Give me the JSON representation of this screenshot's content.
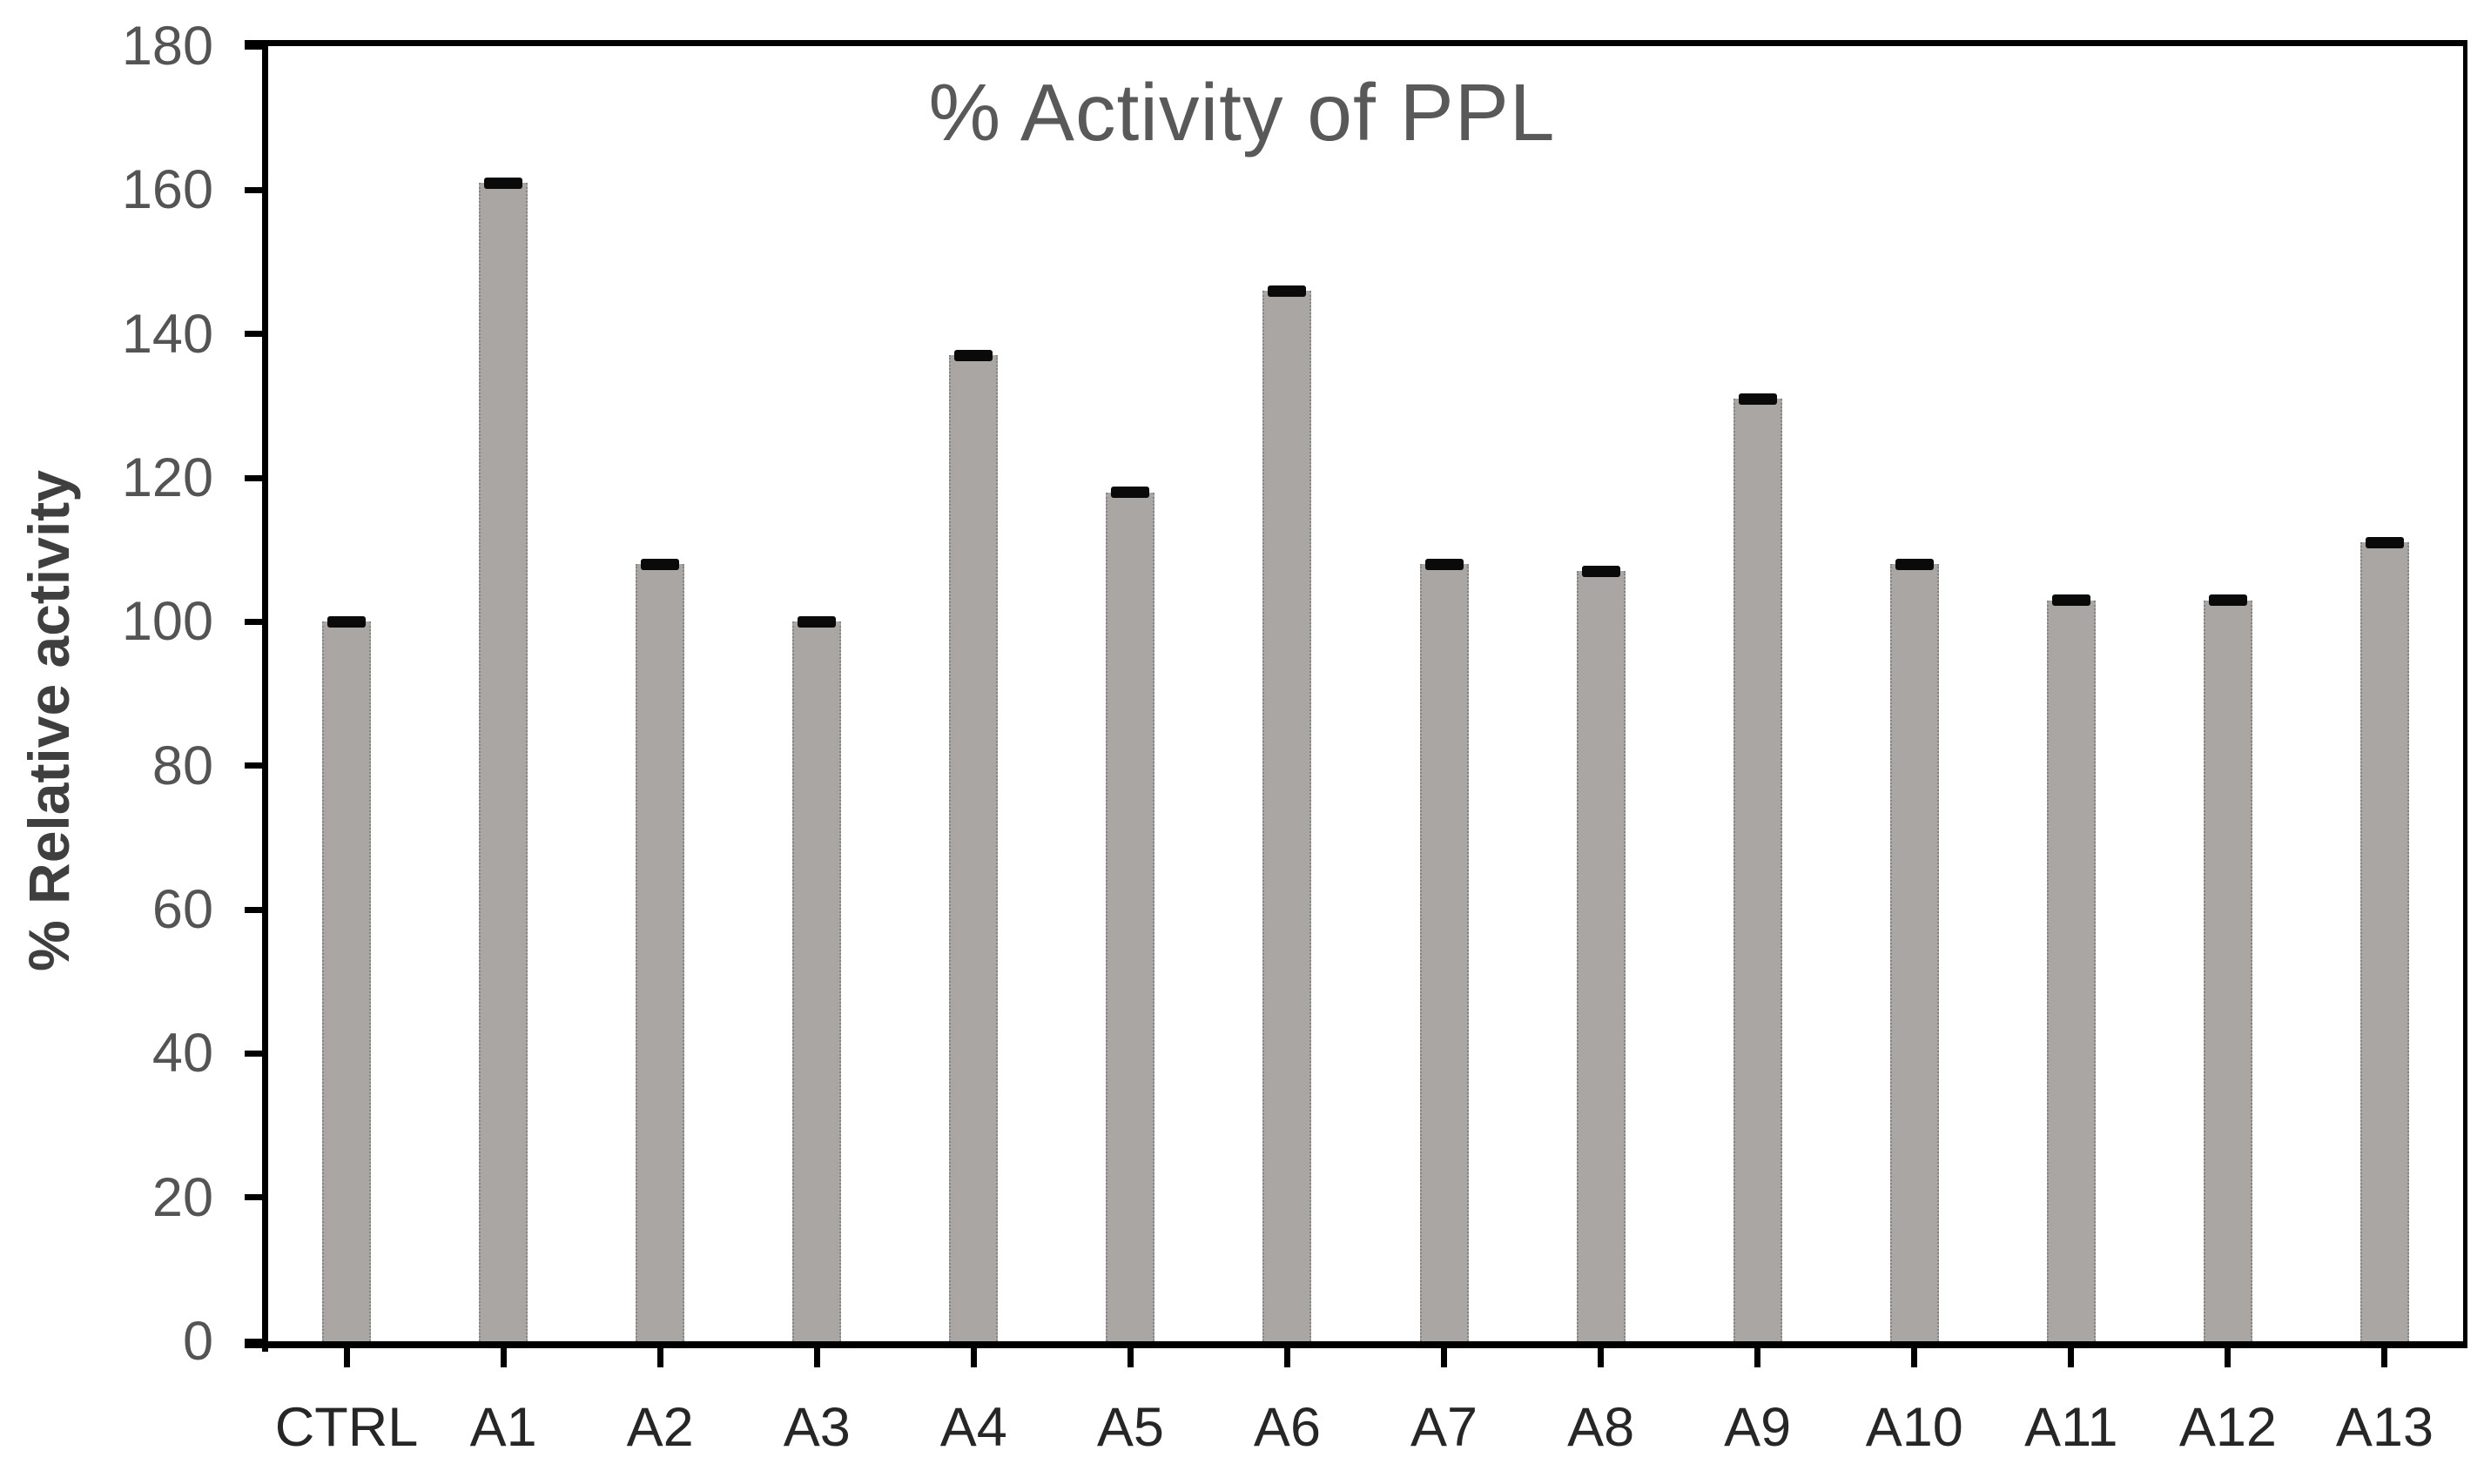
{
  "chart_data": {
    "type": "bar",
    "title": "% Activity of PPL",
    "xlabel": "",
    "ylabel": "% Relative activity",
    "categories": [
      "CTRL",
      "A1",
      "A2",
      "A3",
      "A4",
      "A5",
      "A6",
      "A7",
      "A8",
      "A9",
      "A10",
      "A11",
      "A12",
      "A13"
    ],
    "values": [
      100,
      161,
      108,
      100,
      137,
      118,
      146,
      108,
      107,
      131,
      108,
      103,
      103,
      111
    ],
    "errors": [
      1,
      1,
      1,
      1,
      1,
      1,
      1,
      1,
      1,
      1,
      1,
      1,
      1,
      1
    ],
    "ylim": [
      0,
      180
    ],
    "yticks": [
      0,
      20,
      40,
      60,
      80,
      100,
      120,
      140,
      160,
      180
    ],
    "grid": false,
    "legend": null,
    "plot_border": "box",
    "colors": {
      "bar_fill": "#a9a6a3",
      "bar_edge_dotted": "#6e6b69",
      "error_cap": "#0a0a0a",
      "axis": "#000000",
      "title_text": "#595959",
      "y_tick_text": "#545454",
      "x_tick_text": "#262626",
      "y_label_text": "#3f3f3f",
      "background": "#ffffff"
    }
  }
}
